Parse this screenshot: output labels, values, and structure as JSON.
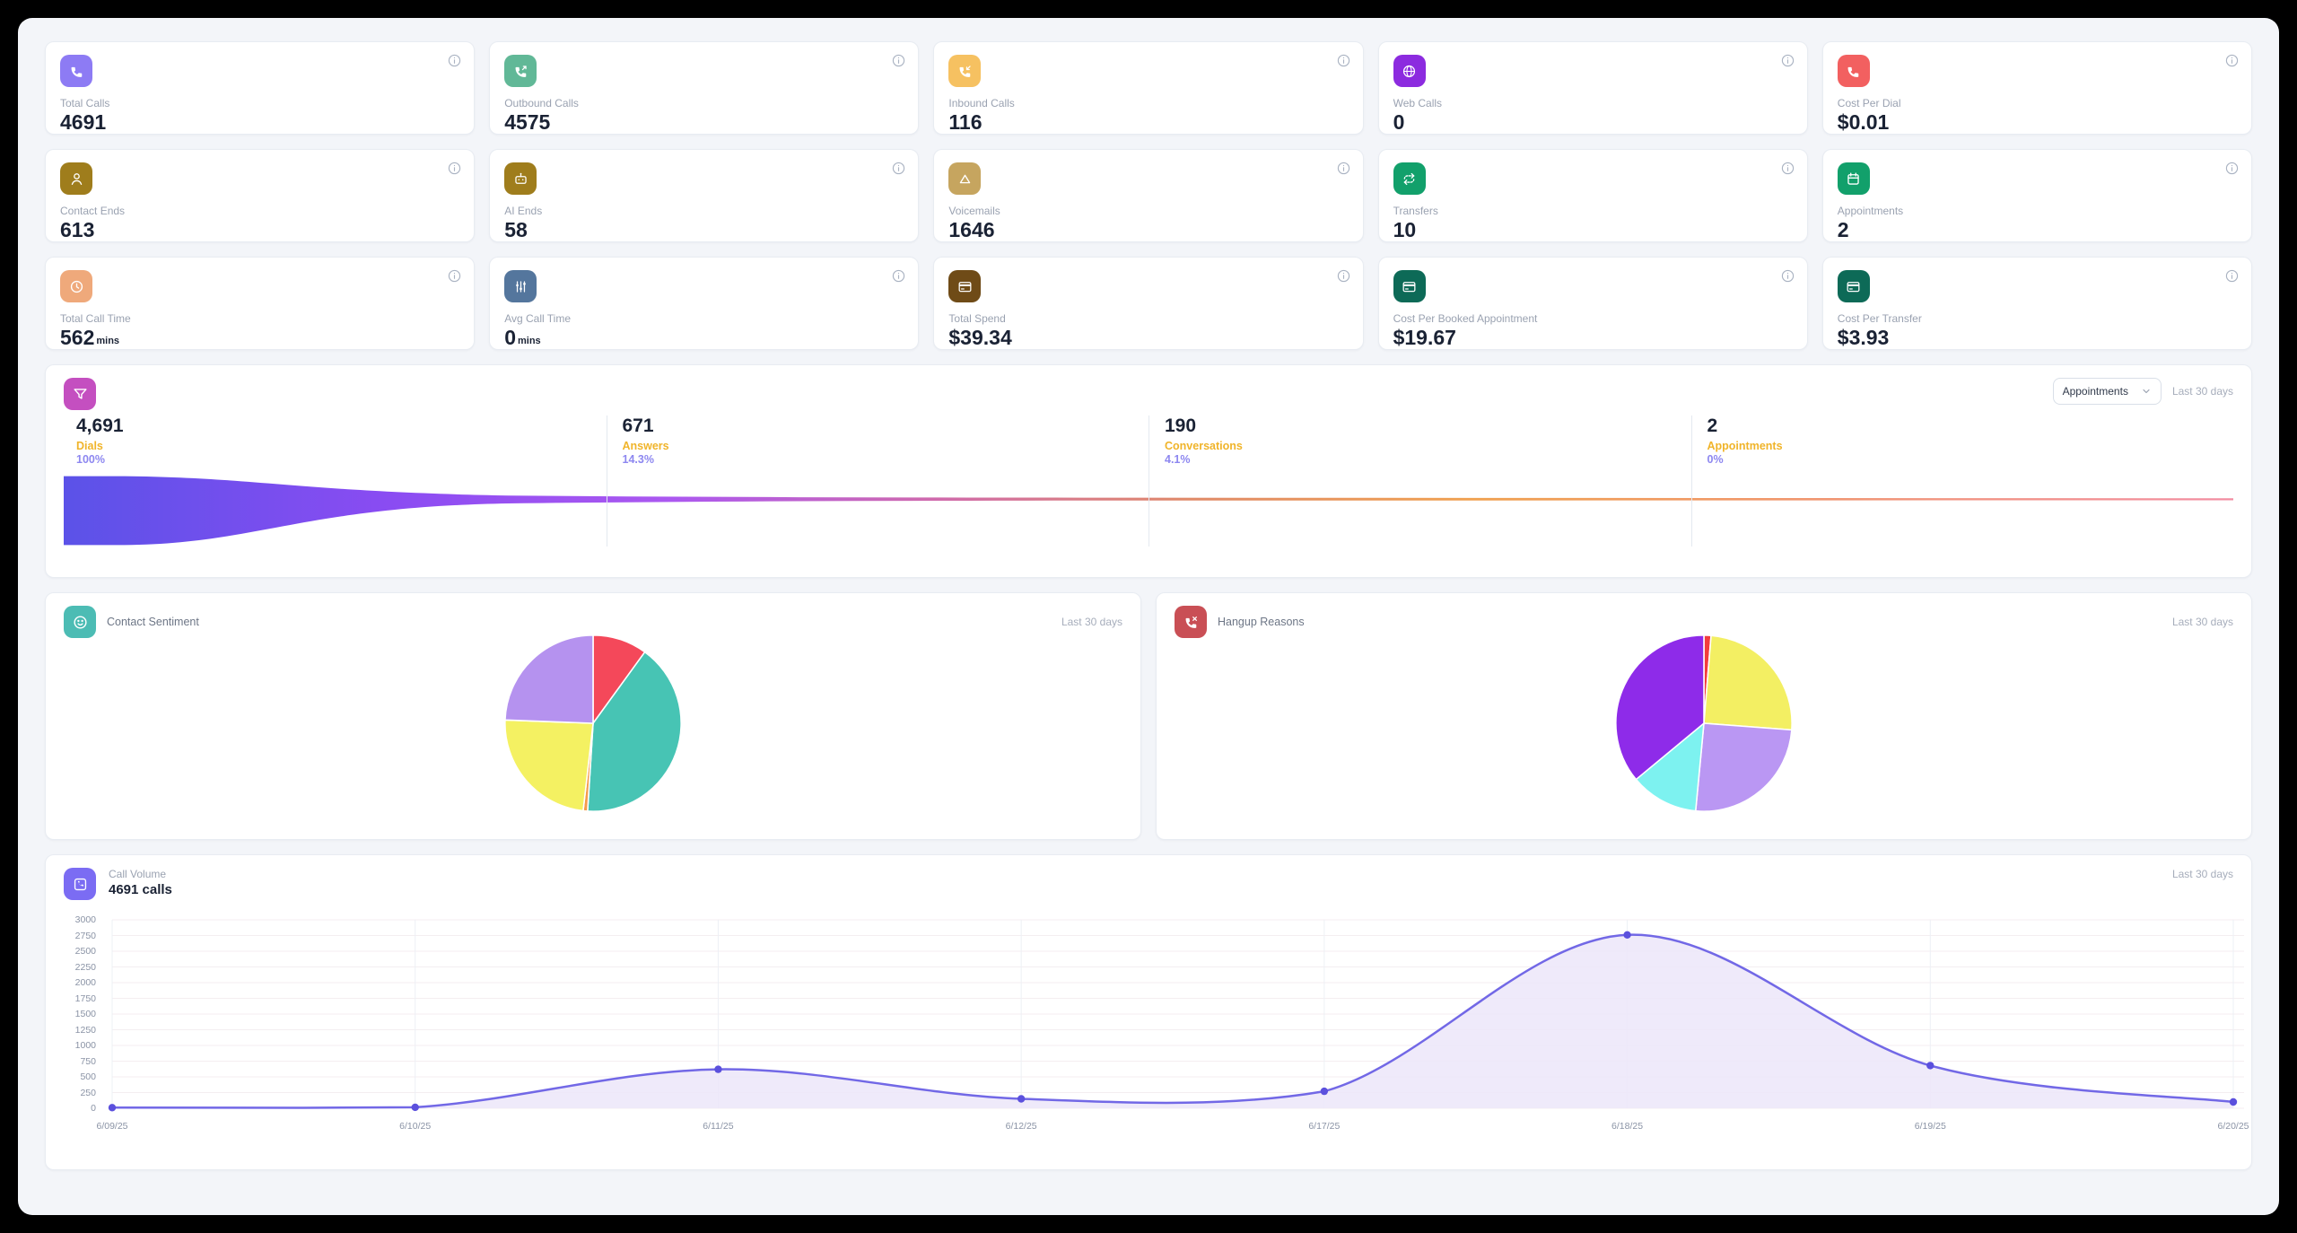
{
  "range_label": "Last 30 days",
  "kpi": {
    "cards": [
      {
        "slug": "total-calls",
        "label": "Total Calls",
        "value": "4691",
        "suffix": "",
        "icon": "phone-icon",
        "icon_color": "#8d7bf4"
      },
      {
        "slug": "outbound-calls",
        "label": "Outbound Calls",
        "value": "4575",
        "suffix": "",
        "icon": "phone-outgoing-icon",
        "icon_color": "#61b897"
      },
      {
        "slug": "inbound-calls",
        "label": "Inbound Calls",
        "value": "116",
        "suffix": "",
        "icon": "phone-incoming-icon",
        "icon_color": "#f6c161"
      },
      {
        "slug": "web-calls",
        "label": "Web Calls",
        "value": "0",
        "suffix": "",
        "icon": "globe-icon",
        "icon_color": "#8c2bdf"
      },
      {
        "slug": "cost-per-dial",
        "label": "Cost Per Dial",
        "value": "$0.01",
        "suffix": "",
        "icon": "phone-icon",
        "icon_color": "#f26060"
      },
      {
        "slug": "contact-ends",
        "label": "Contact Ends",
        "value": "613",
        "suffix": "",
        "icon": "user-icon",
        "icon_color": "#9f7d1c"
      },
      {
        "slug": "ai-ends",
        "label": "AI Ends",
        "value": "58",
        "suffix": "",
        "icon": "bot-icon",
        "icon_color": "#9f7d1c"
      },
      {
        "slug": "voicemails",
        "label": "Voicemails",
        "value": "1646",
        "suffix": "",
        "icon": "voicemail-icon",
        "icon_color": "#c6a55f"
      },
      {
        "slug": "transfers",
        "label": "Transfers",
        "value": "10",
        "suffix": "",
        "icon": "transfer-arrows-icon",
        "icon_color": "#12a06b"
      },
      {
        "slug": "appointments",
        "label": "Appointments",
        "value": "2",
        "suffix": "",
        "icon": "calendar-icon",
        "icon_color": "#12a06b"
      },
      {
        "slug": "total-call-time",
        "label": "Total Call Time",
        "value": "562",
        "suffix": "mins",
        "icon": "clock-icon",
        "icon_color": "#efa97b"
      },
      {
        "slug": "avg-call-time",
        "label": "Avg Call Time",
        "value": "0",
        "suffix": "mins",
        "icon": "sliders-icon",
        "icon_color": "#54769d"
      },
      {
        "slug": "total-spend",
        "label": "Total Spend",
        "value": "$39.34",
        "suffix": "",
        "icon": "credit-card-icon",
        "icon_color": "#6f4b17"
      },
      {
        "slug": "cost-per-booked-appointment",
        "label": "Cost Per Booked Appointment",
        "value": "$19.67",
        "suffix": "",
        "icon": "credit-card-icon",
        "icon_color": "#0d6a57"
      },
      {
        "slug": "cost-per-transfer",
        "label": "Cost Per Transfer",
        "value": "$3.93",
        "suffix": "",
        "icon": "credit-card-icon",
        "icon_color": "#0d6a57"
      }
    ]
  },
  "funnel": {
    "icon": "funnel-icon",
    "icon_color": "#c44fc0",
    "select_value": "Appointments",
    "range_label": "Last 30 days"
  },
  "sentiment": {
    "title": "Contact Sentiment",
    "icon": "smiley-icon",
    "icon_color": "#4cbcb4",
    "range_label": "Last 30 days"
  },
  "hangup": {
    "title": "Hangup Reasons",
    "icon": "phone-x-icon",
    "icon_color": "#c94f55",
    "range_label": "Last 30 days"
  },
  "volume": {
    "title": "Call Volume",
    "subtitle": "4691 calls",
    "icon": "phone-square-icon",
    "icon_color": "#7b6cf3",
    "range_label": "Last 30 days"
  },
  "chart_data": [
    {
      "type": "funnel",
      "title": "Conversion Funnel",
      "stages": [
        {
          "label": "Dials",
          "value": 4691,
          "value_display": "4,691",
          "pct": "100%"
        },
        {
          "label": "Answers",
          "value": 671,
          "value_display": "671",
          "pct": "14.3%"
        },
        {
          "label": "Conversations",
          "value": 190,
          "value_display": "190",
          "pct": "4.1%"
        },
        {
          "label": "Appointments",
          "value": 2,
          "value_display": "2",
          "pct": "0%"
        }
      ],
      "gradient": [
        {
          "offset": 0,
          "color": "#5b52e8"
        },
        {
          "offset": 15,
          "color": "#8a4cf2"
        },
        {
          "offset": 28,
          "color": "#ab58f0"
        },
        {
          "offset": 40,
          "color": "#cf6aad"
        },
        {
          "offset": 52,
          "color": "#e08a68"
        },
        {
          "offset": 65,
          "color": "#f0a150"
        },
        {
          "offset": 78,
          "color": "#f0986a"
        },
        {
          "offset": 100,
          "color": "#f28da2"
        }
      ]
    },
    {
      "type": "pie",
      "title": "Contact Sentiment",
      "slices": [
        {
          "pct": 10.0,
          "color": "#f4485a"
        },
        {
          "pct": 41.0,
          "color": "#47c4b4"
        },
        {
          "pct": 0.8,
          "color": "#f59b4b"
        },
        {
          "pct": 23.8,
          "color": "#f4f162"
        },
        {
          "pct": 24.4,
          "color": "#b592ef"
        }
      ]
    },
    {
      "type": "pie",
      "title": "Hangup Reasons",
      "slices": [
        {
          "pct": 1.3,
          "color": "#f23d3d"
        },
        {
          "pct": 24.9,
          "color": "#f3ef63"
        },
        {
          "pct": 25.3,
          "color": "#ba97f3"
        },
        {
          "pct": 12.5,
          "color": "#7df2f0"
        },
        {
          "pct": 36.0,
          "color": "#8e2be9"
        }
      ]
    },
    {
      "type": "area",
      "title": "Call Volume",
      "x": [
        "6/09/25",
        "6/10/25",
        "6/11/25",
        "6/12/25",
        "6/17/25",
        "6/18/25",
        "6/19/25",
        "6/20/25"
      ],
      "values": [
        10,
        15,
        620,
        150,
        270,
        2760,
        680,
        100
      ],
      "ylim": [
        0,
        3000
      ],
      "ytick_step": 250,
      "grid": true,
      "line_color": "#7268e6",
      "dot_color": "#5b50dd",
      "fill_color": "#ece6f9"
    }
  ]
}
